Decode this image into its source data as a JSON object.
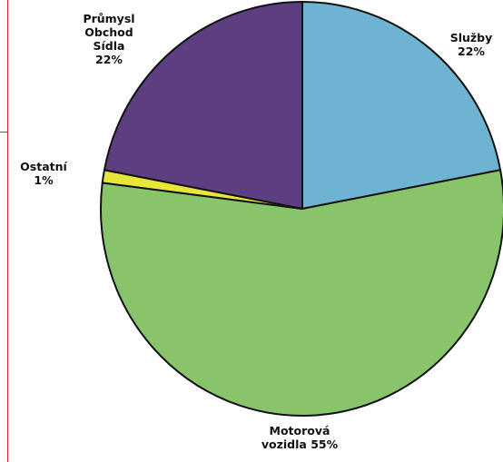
{
  "chart_data": {
    "type": "pie",
    "start_angle_deg": 0,
    "direction": "clockwise",
    "slices": [
      {
        "label": "Služby",
        "value": 22,
        "color": "#6fb3d3"
      },
      {
        "label": "Motorová vozidla",
        "value": 55,
        "color": "#88c46a"
      },
      {
        "label": "Ostatní",
        "value": 1,
        "color": "#e7e43a"
      },
      {
        "label": "Průmysl Obchod Sídla",
        "value": 22,
        "color": "#5d3e80"
      }
    ],
    "labels": {
      "prumysl": [
        "Průmysl",
        "Obchod",
        "Sídla",
        "22%"
      ],
      "sluzby": [
        "Služby",
        "22%"
      ],
      "ostatni": [
        "Ostatní",
        "1%"
      ],
      "motor": [
        "Motorová",
        "vozidla 55%"
      ]
    }
  }
}
